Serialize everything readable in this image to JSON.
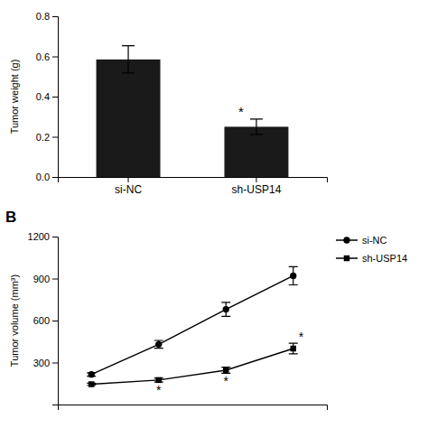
{
  "chart_data": [
    {
      "type": "bar",
      "categories": [
        "si-NC",
        "sh-USP14"
      ],
      "values": [
        0.585,
        0.25
      ],
      "errors": [
        0.068,
        0.038
      ],
      "color": "#1a1a1a",
      "y_label": "Tumor weight (g)",
      "ylim": [
        0,
        0.8
      ],
      "yticks": [
        {
          "value": 0,
          "label": "0.0"
        },
        0.2,
        0.4,
        0.6,
        0.8
      ],
      "grid": false,
      "annotations": [
        {
          "text": "*",
          "category": "sh-USP14"
        }
      ]
    },
    {
      "type": "line",
      "title": "B",
      "x": [
        1,
        2,
        3,
        4
      ],
      "xlim": [
        0.5,
        4.5
      ],
      "xticks": [],
      "tick_labels": "y",
      "y_label": "Tumor volume (mm³)",
      "ylim": [
        0,
        1200
      ],
      "yticks": [
        300,
        600,
        900,
        1200
      ],
      "grid": false,
      "legend": "right",
      "series": [
        {
          "name": "si-NC",
          "color": "#000000",
          "marker": "circle",
          "line_style": "solid",
          "values": [
            215,
            430,
            680,
            920
          ],
          "errors": [
            12,
            28,
            50,
            65
          ]
        },
        {
          "name": "sh-USP14",
          "color": "#000000",
          "marker": "square",
          "line_style": "solid",
          "values": [
            145,
            175,
            245,
            400
          ],
          "errors": [
            8,
            15,
            22,
            38
          ]
        }
      ],
      "annotations": [
        {
          "text": "*",
          "x": 2
        },
        {
          "text": "*",
          "x": 3
        },
        {
          "text": "*",
          "x": 4
        }
      ]
    }
  ]
}
